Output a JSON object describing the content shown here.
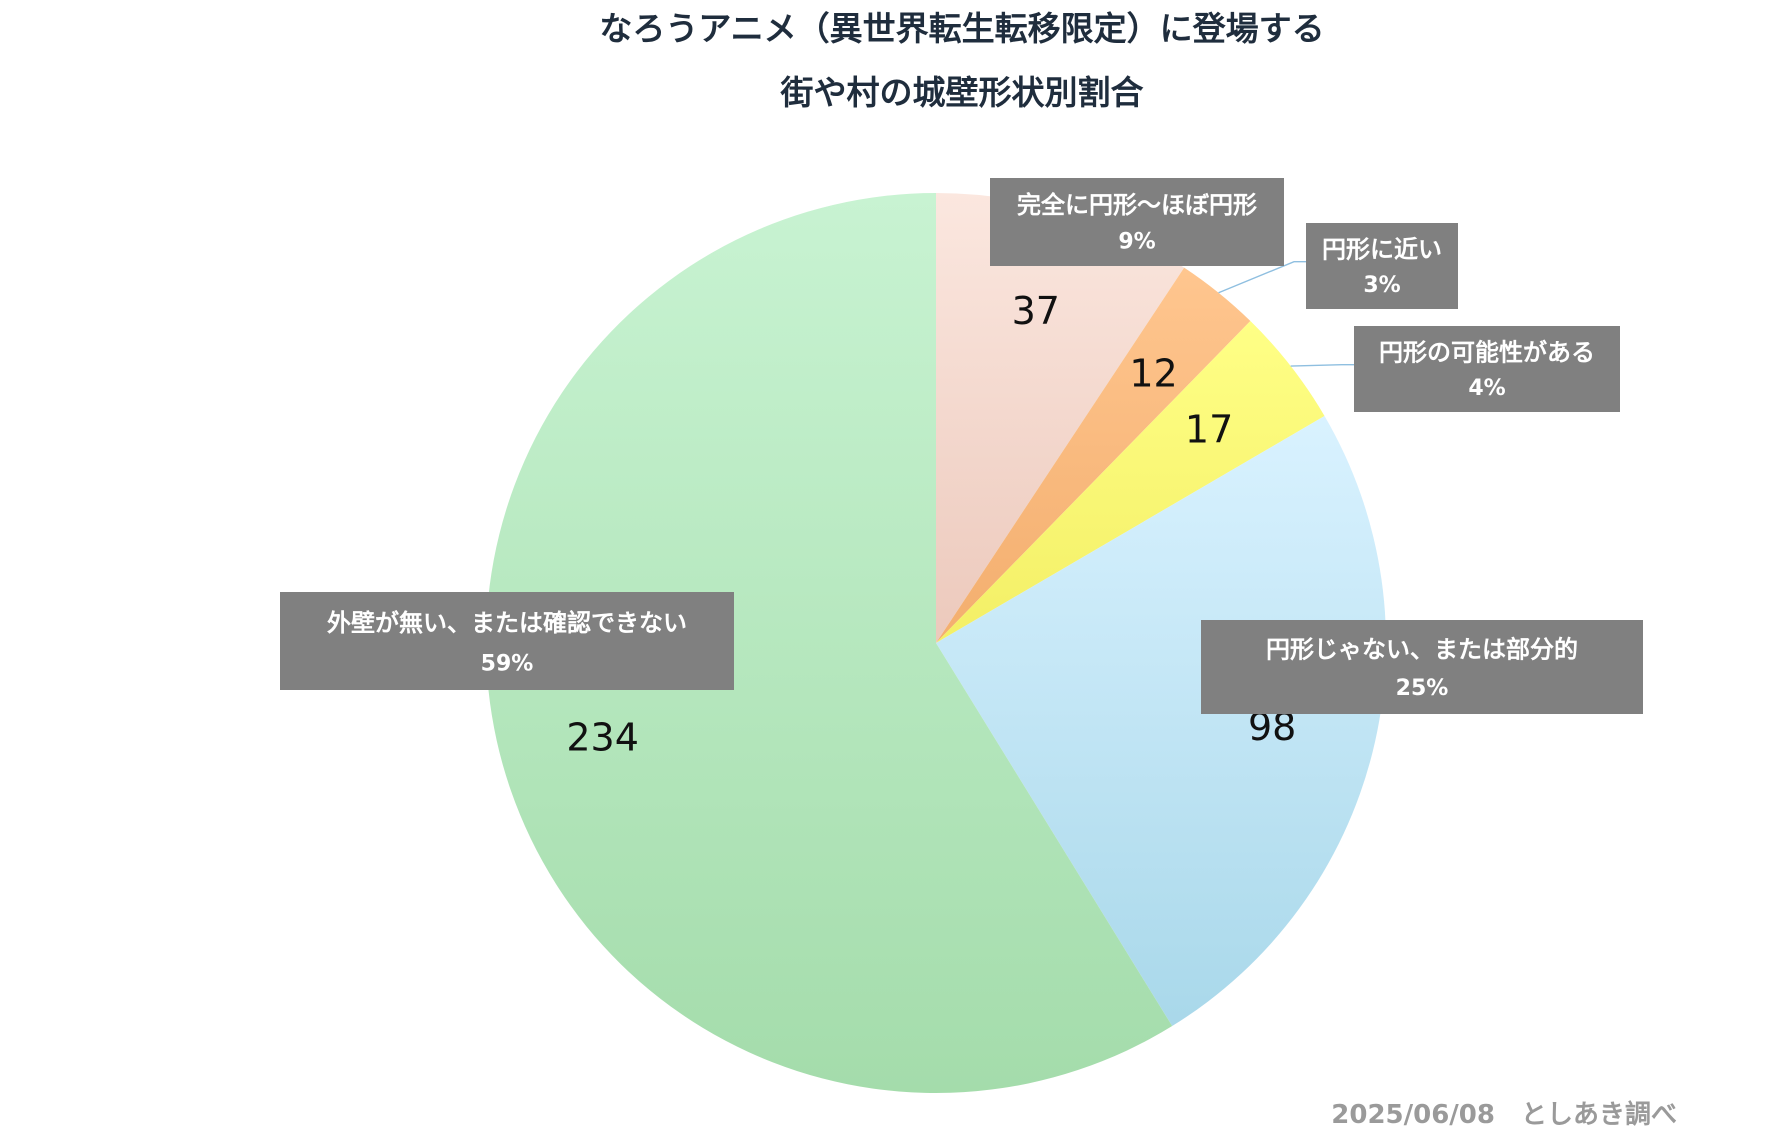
{
  "chart_data": {
    "type": "pie",
    "title": [
      "なろうアニメ（異世界転生転移限定）に登場する",
      "街や村の城壁形状別割合"
    ],
    "start_angle_deg": 0,
    "direction": "clockwise",
    "slices": [
      {
        "label": "完全に円形〜ほぼ円形",
        "value": 37,
        "percent": "9%",
        "color_top": "#fbe7df",
        "color_bottom": "#ecc9bc"
      },
      {
        "label": "円形に近い",
        "value": 12,
        "percent": "3%",
        "color_top": "#ffc68f",
        "color_bottom": "#f3ae6e"
      },
      {
        "label": "円形の可能性がある",
        "value": 17,
        "percent": "4%",
        "color_top": "#ffff86",
        "color_bottom": "#f3ef66"
      },
      {
        "label": "円形じゃない、または部分的",
        "value": 98,
        "percent": "25%",
        "color_top": "#d9f2ff",
        "color_bottom": "#a9d8ea"
      },
      {
        "label": "外壁が無い、または確認できない",
        "value": 234,
        "percent": "59%",
        "color_top": "#c8f3d2",
        "color_bottom": "#a4dcab"
      }
    ],
    "label_box_color": "#808080",
    "leader_line_color": "#8fbfe0"
  },
  "footer": {
    "note": "2025/06/08　としあき調べ"
  }
}
